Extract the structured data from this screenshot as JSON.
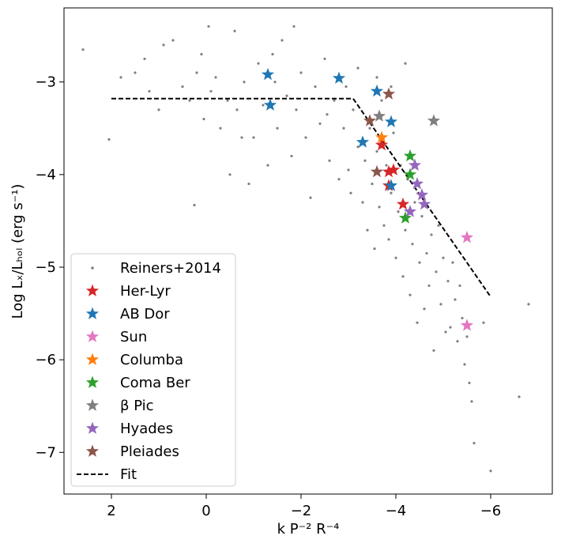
{
  "chart_data": {
    "type": "scatter",
    "title": "",
    "xlabel": "k P⁻² R⁻⁴",
    "ylabel": "Log Lₓ/Lₕₒₗ (erg s⁻¹)",
    "xlim": [
      3.0,
      -7.3
    ],
    "ylim": [
      -7.45,
      -2.2
    ],
    "x_inverted": true,
    "xticks": [
      2,
      0,
      -2,
      -4,
      -6
    ],
    "xtick_labels": [
      "2",
      "0",
      "−2",
      "−4",
      "−6"
    ],
    "yticks": [
      -3,
      -4,
      -5,
      -6,
      -7
    ],
    "ytick_labels": [
      "−3",
      "−4",
      "−5",
      "−6",
      "−7"
    ],
    "grid": false,
    "legend_position": "lower-left",
    "background": {
      "name": "Reiners+2014",
      "color": "#808080",
      "points": [
        [
          2.6,
          -2.65
        ],
        [
          2.05,
          -3.62
        ],
        [
          1.8,
          -2.95
        ],
        [
          1.5,
          -2.9
        ],
        [
          1.3,
          -2.75
        ],
        [
          1.2,
          -3.1
        ],
        [
          1.0,
          -3.3
        ],
        [
          0.9,
          -2.6
        ],
        [
          0.7,
          -2.55
        ],
        [
          0.5,
          -3.05
        ],
        [
          0.35,
          -3.2
        ],
        [
          0.25,
          -4.33
        ],
        [
          0.2,
          -2.9
        ],
        [
          0.1,
          -2.7
        ],
        [
          0.05,
          -3.4
        ],
        [
          -0.05,
          -2.4
        ],
        [
          -0.1,
          -3.1
        ],
        [
          -0.2,
          -2.95
        ],
        [
          -0.3,
          -3.5
        ],
        [
          -0.45,
          -3.2
        ],
        [
          -0.5,
          -4.0
        ],
        [
          -0.6,
          -2.45
        ],
        [
          -0.65,
          -3.3
        ],
        [
          -0.8,
          -3.0
        ],
        [
          -0.9,
          -4.1
        ],
        [
          -1.0,
          -3.6
        ],
        [
          -1.1,
          -2.8
        ],
        [
          -1.2,
          -3.25
        ],
        [
          -1.3,
          -3.9
        ],
        [
          -1.4,
          -2.7
        ],
        [
          -1.5,
          -3.5
        ],
        [
          -1.6,
          -2.55
        ],
        [
          -1.7,
          -3.15
        ],
        [
          -1.8,
          -3.8
        ],
        [
          -1.85,
          -2.4
        ],
        [
          -1.9,
          -3.3
        ],
        [
          -2.0,
          -2.9
        ],
        [
          -2.1,
          -3.6
        ],
        [
          -2.2,
          -4.25
        ],
        [
          -2.3,
          -3.05
        ],
        [
          -2.4,
          -3.45
        ],
        [
          -2.5,
          -2.75
        ],
        [
          -2.6,
          -3.85
        ],
        [
          -2.7,
          -3.2
        ],
        [
          -2.8,
          -4.05
        ],
        [
          -2.9,
          -3.5
        ],
        [
          -3.0,
          -3.95
        ],
        [
          -3.1,
          -3.3
        ],
        [
          -3.2,
          -3.7
        ],
        [
          -3.3,
          -4.3
        ],
        [
          -3.35,
          -3.85
        ],
        [
          -3.4,
          -4.6
        ],
        [
          -3.45,
          -3.5
        ],
        [
          -3.5,
          -4.1
        ],
        [
          -3.55,
          -4.8
        ],
        [
          -3.6,
          -3.75
        ],
        [
          -3.65,
          -4.35
        ],
        [
          -3.7,
          -3.2
        ],
        [
          -3.75,
          -4.55
        ],
        [
          -3.8,
          -3.9
        ],
        [
          -3.85,
          -4.7
        ],
        [
          -3.9,
          -4.2
        ],
        [
          -3.95,
          -3.55
        ],
        [
          -4.0,
          -4.9
        ],
        [
          -4.05,
          -4.4
        ],
        [
          -4.1,
          -3.9
        ],
        [
          -4.15,
          -5.1
        ],
        [
          -4.2,
          -4.6
        ],
        [
          -4.25,
          -4.05
        ],
        [
          -4.3,
          -5.3
        ],
        [
          -4.35,
          -4.75
        ],
        [
          -4.4,
          -4.3
        ],
        [
          -4.45,
          -5.6
        ],
        [
          -4.5,
          -4.95
        ],
        [
          -4.55,
          -4.45
        ],
        [
          -4.6,
          -5.45
        ],
        [
          -4.65,
          -4.85
        ],
        [
          -4.7,
          -5.2
        ],
        [
          -4.75,
          -4.65
        ],
        [
          -4.8,
          -5.9
        ],
        [
          -4.85,
          -5.05
        ],
        [
          -4.9,
          -4.55
        ],
        [
          -4.95,
          -5.4
        ],
        [
          -5.0,
          -4.9
        ],
        [
          -5.05,
          -5.7
        ],
        [
          -5.1,
          -5.15
        ],
        [
          -5.15,
          -5.65
        ],
        [
          -5.2,
          -4.95
        ],
        [
          -5.25,
          -5.35
        ],
        [
          -5.3,
          -5.8
        ],
        [
          -5.35,
          -5.2
        ],
        [
          -5.4,
          -5.55
        ],
        [
          -5.45,
          -6.05
        ],
        [
          -5.5,
          -5.75
        ],
        [
          -5.55,
          -6.25
        ],
        [
          -5.6,
          -6.45
        ],
        [
          -5.65,
          -6.9
        ],
        [
          -5.85,
          -5.6
        ],
        [
          -6.0,
          -7.2
        ],
        [
          -6.6,
          -6.4
        ],
        [
          -6.8,
          -5.4
        ],
        [
          -3.2,
          -2.85
        ],
        [
          -3.6,
          -2.95
        ],
        [
          -3.9,
          -3.05
        ],
        [
          -4.2,
          -2.8
        ],
        [
          -2.95,
          -3.05
        ],
        [
          -1.45,
          -3.0
        ],
        [
          -0.75,
          -3.6
        ],
        [
          -2.55,
          -3.35
        ],
        [
          -3.05,
          -4.2
        ]
      ]
    },
    "series": [
      {
        "name": "Her-Lyr",
        "color": "#d62728",
        "marker": "star",
        "x": [
          -3.7,
          -3.85,
          -3.95,
          -4.15,
          -3.85
        ],
        "y": [
          -3.68,
          -3.97,
          -3.95,
          -4.32,
          -4.12
        ]
      },
      {
        "name": "AB Dor",
        "color": "#1f77b4",
        "marker": "star",
        "x": [
          -1.3,
          -2.8,
          -3.6,
          -3.3,
          -3.9,
          -1.35,
          -3.9
        ],
        "y": [
          -2.92,
          -2.96,
          -3.1,
          -3.65,
          -3.43,
          -3.25,
          -4.12
        ]
      },
      {
        "name": "Sun",
        "color": "#e377c2",
        "marker": "star",
        "x": [
          -5.5,
          -5.5
        ],
        "y": [
          -4.68,
          -5.63
        ]
      },
      {
        "name": "Columba",
        "color": "#ff7f0e",
        "marker": "star",
        "x": [
          -3.7
        ],
        "y": [
          -3.6
        ]
      },
      {
        "name": "Coma Ber",
        "color": "#2ca02c",
        "marker": "star",
        "x": [
          -4.3,
          -4.3,
          -4.2
        ],
        "y": [
          -3.8,
          -4.0,
          -4.47
        ]
      },
      {
        "name": "β Pic",
        "color": "#7f7f7f",
        "marker": "star",
        "x": [
          -4.8,
          -3.65
        ],
        "y": [
          -3.42,
          -3.37
        ]
      },
      {
        "name": "Hyades",
        "color": "#9467bd",
        "marker": "star",
        "x": [
          -4.4,
          -4.45,
          -4.55,
          -4.6,
          -4.3
        ],
        "y": [
          -3.9,
          -4.1,
          -4.22,
          -4.32,
          -4.4
        ]
      },
      {
        "name": "Pleiades",
        "color": "#8c564b",
        "marker": "star",
        "x": [
          -3.85,
          -3.45,
          -3.6
        ],
        "y": [
          -3.13,
          -3.42,
          -3.97
        ]
      },
      {
        "name": "Fit",
        "color": "#000000",
        "marker": "dashed-line",
        "x": [
          2.0,
          -3.1,
          -6.0
        ],
        "y": [
          -3.18,
          -3.18,
          -5.32
        ]
      }
    ]
  }
}
